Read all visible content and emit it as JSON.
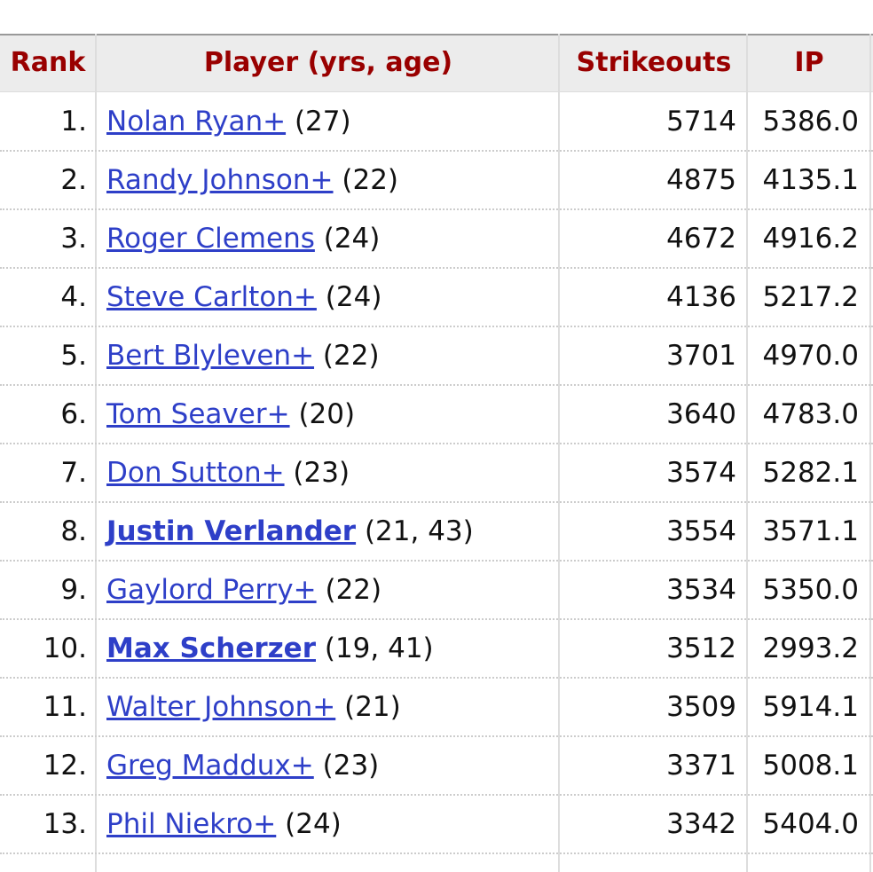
{
  "table": {
    "headers": [
      "Rank",
      "Player (yrs, age)",
      "Strikeouts",
      "IP"
    ],
    "rows": [
      {
        "rank": "1.",
        "player": "Nolan Ryan+",
        "detail": "(27)",
        "bold": false,
        "strikeouts": 5714,
        "ip": "5386.0"
      },
      {
        "rank": "2.",
        "player": "Randy Johnson+",
        "detail": "(22)",
        "bold": false,
        "strikeouts": 4875,
        "ip": "4135.1"
      },
      {
        "rank": "3.",
        "player": "Roger Clemens",
        "detail": "(24)",
        "bold": false,
        "strikeouts": 4672,
        "ip": "4916.2"
      },
      {
        "rank": "4.",
        "player": "Steve Carlton+",
        "detail": "(24)",
        "bold": false,
        "strikeouts": 4136,
        "ip": "5217.2"
      },
      {
        "rank": "5.",
        "player": "Bert Blyleven+",
        "detail": "(22)",
        "bold": false,
        "strikeouts": 3701,
        "ip": "4970.0"
      },
      {
        "rank": "6.",
        "player": "Tom Seaver+",
        "detail": "(20)",
        "bold": false,
        "strikeouts": 3640,
        "ip": "4783.0"
      },
      {
        "rank": "7.",
        "player": "Don Sutton+",
        "detail": "(23)",
        "bold": false,
        "strikeouts": 3574,
        "ip": "5282.1"
      },
      {
        "rank": "8.",
        "player": "Justin Verlander",
        "detail": "(21, 43)",
        "bold": true,
        "strikeouts": 3554,
        "ip": "3571.1"
      },
      {
        "rank": "9.",
        "player": "Gaylord Perry+",
        "detail": "(22)",
        "bold": false,
        "strikeouts": 3534,
        "ip": "5350.0"
      },
      {
        "rank": "10.",
        "player": "Max Scherzer",
        "detail": "(19, 41)",
        "bold": true,
        "strikeouts": 3512,
        "ip": "2993.2"
      },
      {
        "rank": "11.",
        "player": "Walter Johnson+",
        "detail": "(21)",
        "bold": false,
        "strikeouts": 3509,
        "ip": "5914.1"
      },
      {
        "rank": "12.",
        "player": "Greg Maddux+",
        "detail": "(23)",
        "bold": false,
        "strikeouts": 3371,
        "ip": "5008.1"
      },
      {
        "rank": "13.",
        "player": "Phil Niekro+",
        "detail": "(24)",
        "bold": false,
        "strikeouts": 3342,
        "ip": "5404.0"
      }
    ]
  }
}
